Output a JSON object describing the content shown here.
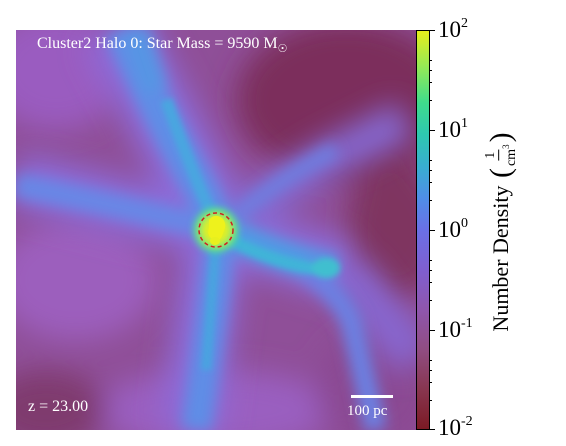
{
  "figure": {
    "title": "Cluster2 Halo 0: Star Mass = 9590 M",
    "title_symbol": "☉",
    "redshift_label": "z = 23.00",
    "scalebar_label": "100 pc"
  },
  "colorbar": {
    "label": "Number Density",
    "unit_numerator": "1",
    "unit_denominator": "cm",
    "unit_denominator_power": "3",
    "scale": "log",
    "range": [
      0.01,
      100
    ],
    "ticks": [
      {
        "base": "10",
        "exp": "2"
      },
      {
        "base": "10",
        "exp": "1"
      },
      {
        "base": "10",
        "exp": "0"
      },
      {
        "base": "10",
        "exp": "-1"
      },
      {
        "base": "10",
        "exp": "-2"
      }
    ],
    "colormap": "plasma-like (dark red → purple → blue → green → yellow)"
  },
  "image": {
    "background_color": "#8d4d95",
    "filament_color": "#5a8fe6",
    "core_color": "#e4f020",
    "marker": "red dashed circle around the central dense clump"
  }
}
